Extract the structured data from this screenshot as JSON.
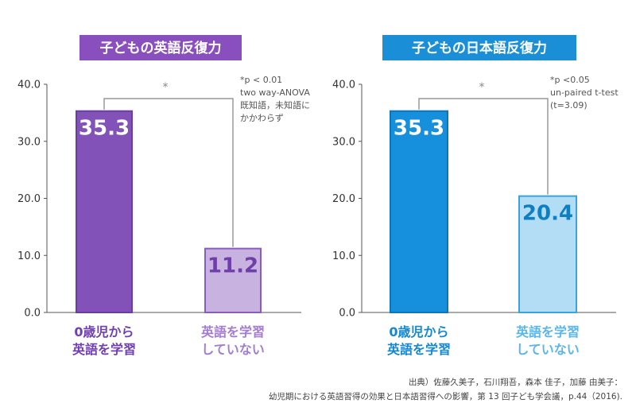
{
  "chart_data": [
    {
      "type": "bar",
      "title": "子どもの英語反復力",
      "categories": [
        "0歳児から\n英語を学習",
        "英語を学習\nしていない"
      ],
      "values": [
        35.3,
        11.2
      ],
      "ylim": [
        0,
        40
      ],
      "yticks": [
        "0.0",
        "10.0",
        "20.0",
        "30.0",
        "40.0"
      ],
      "significance": "*",
      "note": [
        "*p < 0.01",
        "two way-ANOVA",
        "既知語，未知語に",
        "かかわらず"
      ],
      "colors": {
        "title_bg": "#8a4fbe",
        "bar1_fill": "#8352b8",
        "bar1_stroke": "#6a3ea0",
        "bar2_fill": "#c8b2e0",
        "bar2_stroke": "#8a5bc0",
        "label1": "#ffffff",
        "label2": "#6e3fa8",
        "cat1": "#7040b0",
        "cat2": "#a37dd0"
      },
      "grid": false
    },
    {
      "type": "bar",
      "title": "子どもの日本語反復力",
      "categories": [
        "0歳児から\n英語を学習",
        "英語を学習\nしていない"
      ],
      "values": [
        35.3,
        20.4
      ],
      "ylim": [
        0,
        40
      ],
      "yticks": [
        "0.0",
        "10.0",
        "20.0",
        "30.0",
        "40.0"
      ],
      "significance": "*",
      "note": [
        "*p <0.05",
        "un-paired t-test",
        "(t=3.09)"
      ],
      "colors": {
        "title_bg": "#1a8fd8",
        "bar1_fill": "#1690dc",
        "bar1_stroke": "#0d76b8",
        "bar2_fill": "#b3ddf4",
        "bar2_stroke": "#3aa3df",
        "label1": "#ffffff",
        "label2": "#0f7fc4",
        "cat1": "#1688d0",
        "cat2": "#5bb6ea"
      },
      "grid": false
    }
  ],
  "source": [
    "出典）佐藤久美子，石川翔吾，森本 佳子，加藤 由美子：",
    "幼児期における英語習得の効果と日本語習得への影響，第 13 回子ども学会議，p.44（2016)."
  ]
}
